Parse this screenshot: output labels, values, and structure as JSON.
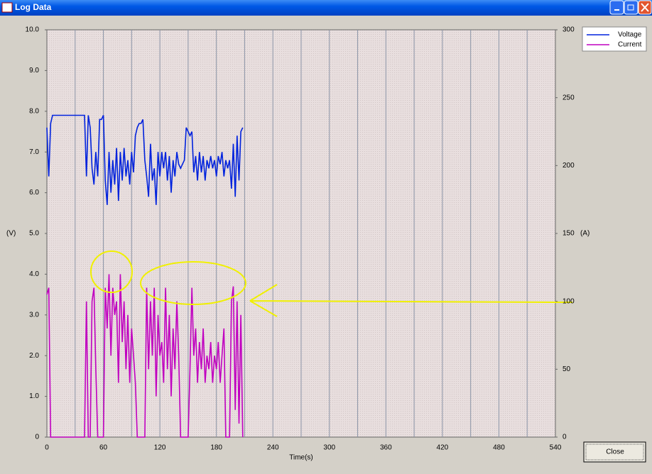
{
  "window": {
    "title": "Log Data",
    "close_button": "Close"
  },
  "chart_data": {
    "type": "line",
    "xlabel": "Time(s)",
    "ylabel": "(V)",
    "y2label": "(A)",
    "xlim": [
      0,
      540
    ],
    "xticks": [
      0,
      60,
      120,
      180,
      240,
      300,
      360,
      420,
      480,
      540
    ],
    "ylim": [
      0,
      10
    ],
    "yticks": [
      0,
      {
        "value": 1,
        "label": "1.0"
      },
      {
        "value": 2,
        "label": "2.0"
      },
      {
        "value": 3,
        "label": "3.0"
      },
      {
        "value": 4,
        "label": "4.0"
      },
      {
        "value": 5,
        "label": "5.0"
      },
      {
        "value": 6,
        "label": "6.0"
      },
      {
        "value": 7,
        "label": "7.0"
      },
      {
        "value": 8,
        "label": "8.0"
      },
      {
        "value": 9,
        "label": "9.0"
      },
      {
        "value": 10,
        "label": "10.0"
      }
    ],
    "y2lim": [
      0,
      300
    ],
    "y2ticks": [
      0,
      50,
      100,
      150,
      200,
      250,
      300
    ],
    "grid": true,
    "legend": "top-right",
    "x": [
      0,
      2,
      4,
      6,
      8,
      10,
      12,
      14,
      16,
      18,
      20,
      22,
      24,
      26,
      28,
      30,
      32,
      34,
      36,
      38,
      40,
      42,
      44,
      46,
      48,
      50,
      52,
      54,
      56,
      58,
      60,
      62,
      64,
      66,
      68,
      70,
      72,
      74,
      76,
      78,
      80,
      82,
      84,
      86,
      88,
      90,
      92,
      94,
      96,
      98,
      100,
      102,
      104,
      106,
      108,
      110,
      112,
      114,
      116,
      118,
      120,
      122,
      124,
      126,
      128,
      130,
      132,
      134,
      136,
      138,
      140,
      142,
      144,
      146,
      148,
      150,
      152,
      154,
      156,
      158,
      160,
      162,
      164,
      166,
      168,
      170,
      172,
      174,
      176,
      178,
      180,
      182,
      184,
      186,
      188,
      190,
      192,
      194,
      196,
      198,
      200,
      202,
      204,
      206,
      208
    ],
    "series": [
      {
        "name": "Voltage",
        "color": "#0022dd",
        "axis": "y",
        "values": [
          7.6,
          6.4,
          7.7,
          7.9,
          7.9,
          7.9,
          7.9,
          7.9,
          7.9,
          7.9,
          7.9,
          7.9,
          7.9,
          7.9,
          7.9,
          7.9,
          7.9,
          7.9,
          7.9,
          7.9,
          7.9,
          6.4,
          7.9,
          7.6,
          6.6,
          6.2,
          7.0,
          6.4,
          7.8,
          7.8,
          7.9,
          6.3,
          5.7,
          7.0,
          6.0,
          6.8,
          6.2,
          7.1,
          5.8,
          7.0,
          6.3,
          7.1,
          6.4,
          6.8,
          6.2,
          7.0,
          6.5,
          7.4,
          7.6,
          7.7,
          7.7,
          7.8,
          6.8,
          6.4,
          5.9,
          7.2,
          6.3,
          6.6,
          5.7,
          7.0,
          6.4,
          7.0,
          6.6,
          7.0,
          6.3,
          6.9,
          6.0,
          6.8,
          6.4,
          7.0,
          6.7,
          6.6,
          6.7,
          6.8,
          7.6,
          7.5,
          7.4,
          7.5,
          6.5,
          6.9,
          6.3,
          7.0,
          6.5,
          6.9,
          6.3,
          6.8,
          6.6,
          6.9,
          6.6,
          6.8,
          6.4,
          6.9,
          6.7,
          7.0,
          6.4,
          6.8,
          6.6,
          6.8,
          6.1,
          7.2,
          5.9,
          7.4,
          6.3,
          7.5,
          7.6
        ]
      },
      {
        "name": "Current",
        "color": "#c000c0",
        "axis": "y2",
        "values": [
          105,
          110,
          0,
          0,
          0,
          0,
          0,
          0,
          0,
          0,
          0,
          0,
          0,
          0,
          0,
          0,
          0,
          0,
          0,
          0,
          0,
          100,
          0,
          0,
          100,
          110,
          50,
          0,
          0,
          0,
          0,
          110,
          80,
          120,
          60,
          110,
          90,
          100,
          40,
          120,
          70,
          100,
          50,
          90,
          40,
          80,
          60,
          40,
          0,
          0,
          0,
          0,
          0,
          110,
          50,
          100,
          60,
          110,
          30,
          90,
          60,
          70,
          40,
          110,
          50,
          90,
          30,
          80,
          50,
          100,
          60,
          0,
          0,
          0,
          0,
          0,
          50,
          110,
          60,
          80,
          40,
          70,
          50,
          80,
          40,
          60,
          50,
          70,
          40,
          60,
          50,
          70,
          40,
          60,
          80,
          0,
          0,
          0,
          100,
          111,
          20,
          100,
          10,
          90,
          0
        ]
      }
    ]
  }
}
